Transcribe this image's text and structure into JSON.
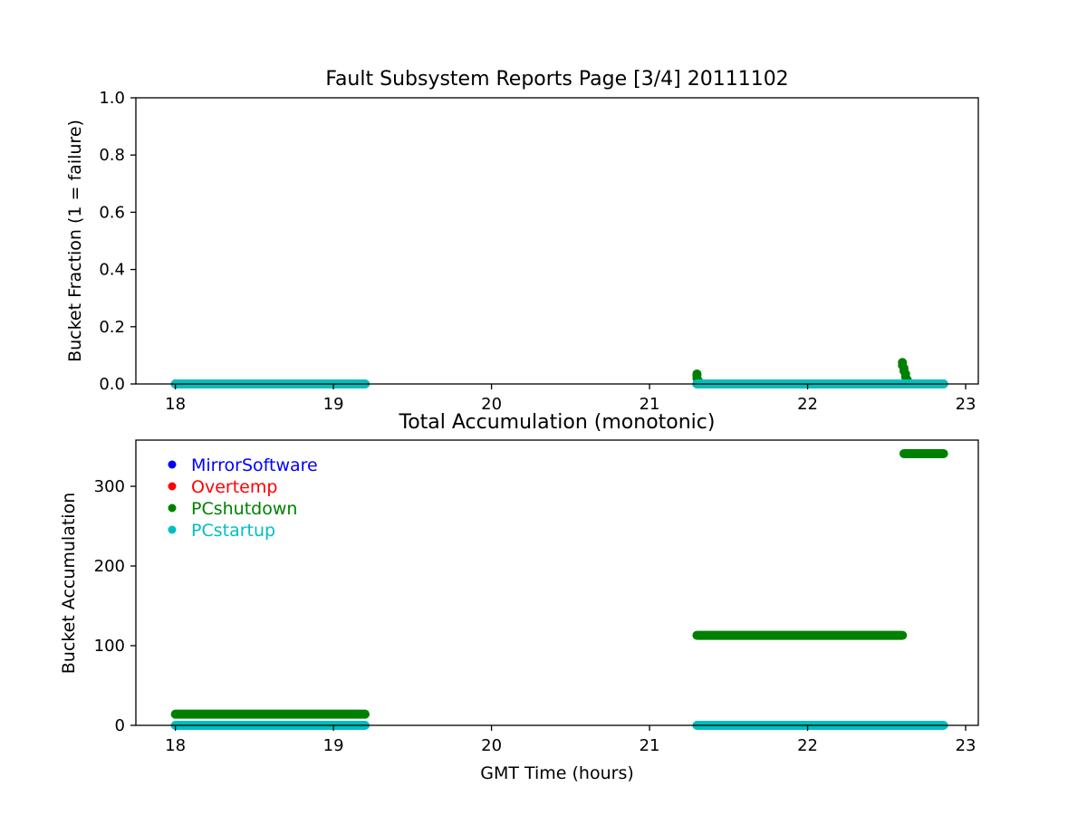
{
  "chart_data": [
    {
      "type": "scatter",
      "title": "Fault Subsystem Reports Page [3/4] 20111102",
      "xlabel": "",
      "ylabel": "Bucket Fraction (1 = failure)",
      "xlim": [
        17.75,
        23.08
      ],
      "ylim": [
        0,
        1.0
      ],
      "xticks": [
        "18",
        "19",
        "20",
        "21",
        "22",
        "23"
      ],
      "yticks": [
        "0.0",
        "0.2",
        "0.4",
        "0.6",
        "0.8",
        "1.0"
      ],
      "grid": false,
      "series": [
        {
          "name": "PCshutdown",
          "color": "#008000",
          "segments": [
            {
              "x_start": 18.0,
              "x_end": 19.2,
              "y": 0.0
            },
            {
              "x_start": 21.3,
              "x_end": 22.86,
              "y": 0.0
            }
          ],
          "points": [
            {
              "x": 21.3,
              "y": 0.035
            },
            {
              "x": 21.3,
              "y": 0.03
            },
            {
              "x": 21.3,
              "y": 0.02
            },
            {
              "x": 21.31,
              "y": 0.01
            },
            {
              "x": 22.6,
              "y": 0.075
            },
            {
              "x": 22.6,
              "y": 0.065
            },
            {
              "x": 22.61,
              "y": 0.055
            },
            {
              "x": 22.61,
              "y": 0.045
            },
            {
              "x": 22.62,
              "y": 0.035
            },
            {
              "x": 22.62,
              "y": 0.025
            },
            {
              "x": 22.63,
              "y": 0.015
            }
          ]
        },
        {
          "name": "PCstartup",
          "color": "#00bfbf",
          "segments": [
            {
              "x_start": 18.0,
              "x_end": 19.2,
              "y": 0.0
            },
            {
              "x_start": 21.3,
              "x_end": 22.86,
              "y": 0.0
            }
          ],
          "points": []
        }
      ]
    },
    {
      "type": "scatter",
      "title": "Total Accumulation (monotonic)",
      "xlabel": "GMT Time (hours)",
      "ylabel": "Bucket Accumulation",
      "xlim": [
        17.75,
        23.08
      ],
      "ylim": [
        0,
        358
      ],
      "xticks": [
        "18",
        "19",
        "20",
        "21",
        "22",
        "23"
      ],
      "yticks": [
        "0",
        "100",
        "200",
        "300"
      ],
      "grid": false,
      "legend": {
        "placement": "top-left",
        "entries": [
          {
            "label": "MirrorSoftware",
            "color": "#0000ff"
          },
          {
            "label": "Overtemp",
            "color": "#ff0000"
          },
          {
            "label": "PCshutdown",
            "color": "#008000"
          },
          {
            "label": "PCstartup",
            "color": "#00bfbf"
          }
        ]
      },
      "series": [
        {
          "name": "PCshutdown",
          "color": "#008000",
          "segments": [
            {
              "x_start": 18.0,
              "x_end": 19.2,
              "y": 14
            },
            {
              "x_start": 21.3,
              "x_end": 22.6,
              "y": 113
            },
            {
              "x_start": 22.61,
              "x_end": 22.86,
              "y": 341
            }
          ],
          "points": []
        },
        {
          "name": "PCstartup",
          "color": "#00bfbf",
          "segments": [
            {
              "x_start": 18.0,
              "x_end": 19.2,
              "y": 0
            },
            {
              "x_start": 21.3,
              "x_end": 22.86,
              "y": 0
            }
          ],
          "points": []
        }
      ]
    }
  ]
}
